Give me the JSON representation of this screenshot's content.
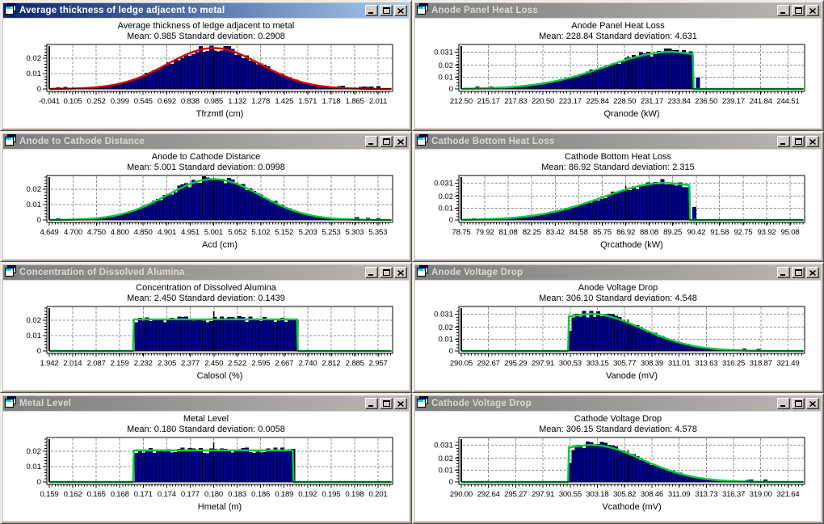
{
  "app": {
    "workspace_bg": "#D4D0C8",
    "titlebar_active_gradient": [
      "#0A246A",
      "#A6CAF0"
    ],
    "titlebar_inactive_gradient": [
      "#7E7E7E",
      "#BAB7B2"
    ],
    "titlebar_active_text": "#FFFFFF",
    "titlebar_inactive_text": "#DCD9D4",
    "window_buttons": [
      "minimize-icon",
      "maximize-icon",
      "close-icon"
    ],
    "window_icon": "cascading-windows-icon",
    "grid_color": "#909090",
    "bar_color": "#000089",
    "frame_color": "#000000",
    "mean_line_color": "#000000"
  },
  "chart_data": [
    {
      "type": "histogram",
      "active": true,
      "window_title": "Average thickness of ledge adjacent to metal",
      "title": "Average thickness of ledge adjacent to metal",
      "stats": "Mean: 0.985 Standard deviation: 0.2908",
      "mean": 0.985,
      "std": 0.2908,
      "xlabel": "Tfrzmtl (cm)",
      "x_ticks": [
        "-0.041",
        "0.105",
        "0.252",
        "0.399",
        "0.545",
        "0.692",
        "0.838",
        "0.985",
        "1.132",
        "1.278",
        "1.425",
        "1.571",
        "1.718",
        "1.865",
        "2.011"
      ],
      "y_ticks": [
        "0",
        "0.01",
        "0.02"
      ],
      "ylim": [
        0,
        0.0278
      ],
      "curve_color": "#DE0000",
      "distribution": {
        "kind": "normal",
        "mu": 0.985,
        "sigma": 0.2908,
        "peak": 0.0265
      }
    },
    {
      "type": "histogram",
      "active": false,
      "window_title": "Anode Panel Heat Loss",
      "title": "Anode Panel Heat Loss",
      "stats": "Mean: 228.84 Standard deviation: 4.631",
      "mean": 228.84,
      "std": 4.631,
      "xlabel": "Qranode (kW)",
      "x_ticks": [
        "212.50",
        "215.17",
        "217.83",
        "220.50",
        "223.17",
        "225.84",
        "228.50",
        "231.17",
        "233.84",
        "236.50",
        "239.17",
        "241.84",
        "244.51"
      ],
      "y_ticks": [
        "0",
        "0.01",
        "0.02",
        "0.031"
      ],
      "ylim": [
        0,
        0.036
      ],
      "curve_color": "#00CE3C",
      "distribution": {
        "kind": "skewLeft",
        "peakX": 233.2,
        "sigma": 6.5,
        "cutoff": 235.25,
        "peak": 0.0312
      }
    },
    {
      "type": "histogram",
      "active": false,
      "window_title": "Anode to Cathode Distance",
      "title": "Anode to Cathode Distance",
      "stats": "Mean: 5.001 Standard deviation: 0.0998",
      "mean": 5.001,
      "std": 0.0998,
      "xlabel": "Acd (cm)",
      "x_ticks": [
        "4.649",
        "4.700",
        "4.750",
        "4.800",
        "4.850",
        "4.901",
        "4.951",
        "5.001",
        "5.052",
        "5.102",
        "5.152",
        "5.203",
        "5.253",
        "5.303",
        "5.353"
      ],
      "y_ticks": [
        "0",
        "0.01",
        "0.02"
      ],
      "ylim": [
        0,
        0.0278
      ],
      "curve_color": "#00CE3C",
      "distribution": {
        "kind": "normal",
        "mu": 5.001,
        "sigma": 0.0998,
        "peak": 0.0265
      }
    },
    {
      "type": "histogram",
      "active": false,
      "window_title": "Cathode Bottom Heat Loss",
      "title": "Cathode Bottom Heat Loss",
      "stats": "Mean: 86.92 Standard deviation: 2.315",
      "mean": 86.92,
      "std": 2.315,
      "xlabel": "Qrcathode (kW)",
      "x_ticks": [
        "78.75",
        "79.92",
        "81.08",
        "82.25",
        "83.42",
        "84.58",
        "85.75",
        "86.92",
        "88.08",
        "89.25",
        "90.42",
        "91.58",
        "92.75",
        "93.92",
        "95.08"
      ],
      "y_ticks": [
        "0",
        "0.01",
        "0.02",
        "0.031"
      ],
      "ylim": [
        0,
        0.036
      ],
      "curve_color": "#00CE3C",
      "distribution": {
        "kind": "skewLeft",
        "peakX": 88.95,
        "sigma": 3.2,
        "cutoff": 90.1,
        "peak": 0.0312
      }
    },
    {
      "type": "histogram",
      "active": false,
      "window_title": "Concentration of Dissolved Alumina",
      "title": "Concentration of Dissolved Alumina",
      "stats": "Mean: 2.450 Standard deviation: 0.1439",
      "mean": 2.45,
      "std": 0.1439,
      "xlabel": "Calosol (%)",
      "x_ticks": [
        "1.942",
        "2.014",
        "2.087",
        "2.159",
        "2.232",
        "2.305",
        "2.377",
        "2.450",
        "2.522",
        "2.595",
        "2.667",
        "2.740",
        "2.812",
        "2.885",
        "2.957"
      ],
      "y_ticks": [
        "0",
        "0.01",
        "0.02"
      ],
      "ylim": [
        0,
        0.0278
      ],
      "curve_color": "#00CE3C",
      "distribution": {
        "kind": "uniform",
        "a": 2.203,
        "b": 2.707,
        "height": 0.0205
      }
    },
    {
      "type": "histogram",
      "active": false,
      "window_title": "Anode Voltage Drop",
      "title": "Anode Voltage Drop",
      "stats": "Mean: 306.10 Standard deviation: 4.548",
      "mean": 306.1,
      "std": 4.548,
      "xlabel": "Vanode (mV)",
      "x_ticks": [
        "290.05",
        "292.67",
        "295.29",
        "297.91",
        "300.53",
        "303.15",
        "305.77",
        "308.39",
        "311.01",
        "313.63",
        "316.25",
        "318.87",
        "321.49"
      ],
      "y_ticks": [
        "0",
        "0.01",
        "0.02",
        "0.031"
      ],
      "ylim": [
        0,
        0.036
      ],
      "curve_color": "#00CE3C",
      "distribution": {
        "kind": "skewRight",
        "start": 300.33,
        "peakX": 302.4,
        "sigma": 5.0,
        "peak": 0.0312
      }
    },
    {
      "type": "histogram",
      "active": false,
      "window_title": "Metal Level",
      "title": "Metal Level",
      "stats": "Mean: 0.180 Standard deviation: 0.0058",
      "mean": 0.18,
      "std": 0.0058,
      "xlabel": "Hmetal (m)",
      "x_ticks": [
        "0.159",
        "0.162",
        "0.165",
        "0.168",
        "0.171",
        "0.174",
        "0.177",
        "0.180",
        "0.183",
        "0.186",
        "0.189",
        "0.192",
        "0.195",
        "0.198",
        "0.201"
      ],
      "y_ticks": [
        "0",
        "0.01",
        "0.02"
      ],
      "ylim": [
        0,
        0.0278
      ],
      "curve_color": "#00CE3C",
      "distribution": {
        "kind": "uniform",
        "a": 0.1698,
        "b": 0.1902,
        "height": 0.0205
      }
    },
    {
      "type": "histogram",
      "active": false,
      "window_title": "Cathode Voltage Drop",
      "title": "Cathode Voltage Drop",
      "stats": "Mean: 306.15 Standard deviation: 4.578",
      "mean": 306.15,
      "std": 4.578,
      "xlabel": "Vcathode (mV)",
      "x_ticks": [
        "290.00",
        "292.64",
        "295.27",
        "297.91",
        "300.55",
        "303.18",
        "305.82",
        "308.46",
        "311.09",
        "313.73",
        "316.37",
        "319.00",
        "321.64"
      ],
      "y_ticks": [
        "0",
        "0.01",
        "0.02",
        "0.031"
      ],
      "ylim": [
        0,
        0.036
      ],
      "curve_color": "#00CE3C",
      "distribution": {
        "kind": "skewRight",
        "start": 300.38,
        "peakX": 302.5,
        "sigma": 5.0,
        "peak": 0.0312
      }
    }
  ]
}
